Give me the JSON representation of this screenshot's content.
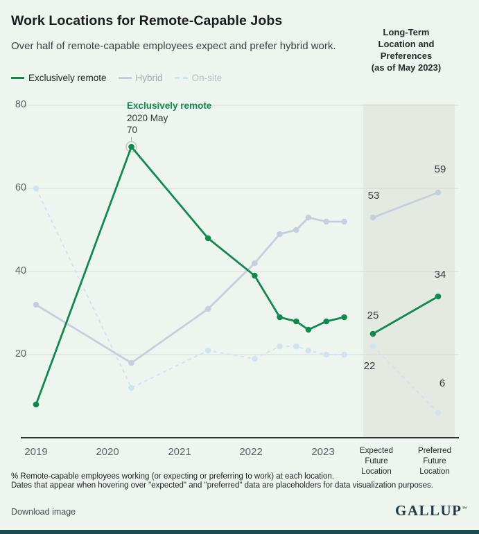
{
  "header": {
    "title": "Work Locations for Remote-Capable Jobs",
    "subtitle": "Over half of remote-capable employees expect and prefer hybrid work.",
    "panel_header": "Long-Term\nLocation and\nPreferences\n(as of May 2023)"
  },
  "panel": {
    "expected_label": "Expected\nFuture\nLocation",
    "preferred_label": "Preferred\nFuture\nLocation",
    "background": "#e4e9e2"
  },
  "chart_data": {
    "type": "line",
    "title": "Work Locations for Remote-Capable Jobs",
    "ylabel": "% Remote-capable employees",
    "ylim": [
      0,
      80
    ],
    "y_ticks": [
      80,
      60,
      40,
      20
    ],
    "x_tick_labels": [
      "2019",
      "2020",
      "2021",
      "2022",
      "2023"
    ],
    "x_dates": [
      "2019",
      "2020 May",
      "2021 May",
      "2022 Feb",
      "2022 Jun",
      "2022 Sep",
      "2022 Nov",
      "2023 Feb",
      "2023 May"
    ],
    "x_years": [
      2019,
      2020.33,
      2021.4,
      2022.05,
      2022.4,
      2022.63,
      2022.8,
      2023.05,
      2023.3
    ],
    "grid": true,
    "legend_position": "top-left",
    "series": [
      {
        "name": "Exclusively remote",
        "color": "#0e8a4f",
        "dashed": false,
        "values": [
          8,
          70,
          48,
          39,
          29,
          28,
          26,
          28,
          29
        ],
        "expected": 25,
        "preferred": 34
      },
      {
        "name": "Hybrid",
        "color": "#c6cedb",
        "dashed": false,
        "values": [
          32,
          18,
          31,
          42,
          49,
          50,
          53,
          52,
          52
        ],
        "expected": 53,
        "preferred": 59
      },
      {
        "name": "On-site",
        "color": "#d0e3ef",
        "dashed": true,
        "values": [
          60,
          12,
          21,
          19,
          22,
          22,
          21,
          20,
          20
        ],
        "expected": 22,
        "preferred": 6
      }
    ],
    "annotation": {
      "series": "Exclusively remote",
      "date": "2020 May",
      "value": 70,
      "x_index": 1
    }
  },
  "footer": {
    "note_line1": "% Remote-capable employees working (or expecting or preferring to work) at each location.",
    "note_line2": "Dates that appear when hovering over \"expected\" and \"preferred\" data are placeholders for data visualization purposes.",
    "download_label": "Download image",
    "brand": "GALLUP"
  },
  "colors": {
    "background": "#eef4ee",
    "panel_background": "#e4e9e2",
    "gridline": "#d8dcd3",
    "axis": "#303234",
    "remote_green": "#0e8a4f",
    "hybrid_gray": "#c6cedb",
    "onsite_blue": "#d0e3ef",
    "bottom_bar": "#1c4b53"
  }
}
